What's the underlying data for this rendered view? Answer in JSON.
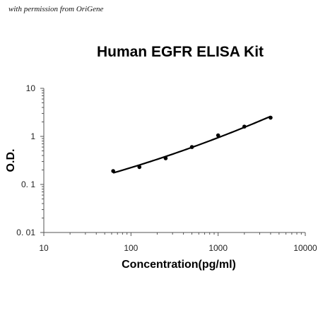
{
  "watermark": "with permission from OriGene",
  "chart_data": {
    "type": "scatter",
    "title": "Human EGFR ELISA Kit",
    "xlabel": "Concentration(pg/ml)",
    "ylabel": "O.D.",
    "xscale": "log",
    "yscale": "log",
    "xlim": [
      10,
      10000
    ],
    "ylim": [
      0.01,
      10
    ],
    "x_ticks": [
      "10",
      "100",
      "1000",
      "10000"
    ],
    "y_ticks": [
      "0. 01",
      "0. 1",
      "1",
      "10"
    ],
    "grid": false,
    "legend": "none",
    "series": [
      {
        "x": [
          62.5,
          125,
          250,
          500,
          1000,
          2000,
          4000
        ],
        "y": [
          0.19,
          0.23,
          0.35,
          0.6,
          1.05,
          1.6,
          2.45
        ]
      }
    ],
    "fit_curve": true,
    "color": "#000000"
  }
}
